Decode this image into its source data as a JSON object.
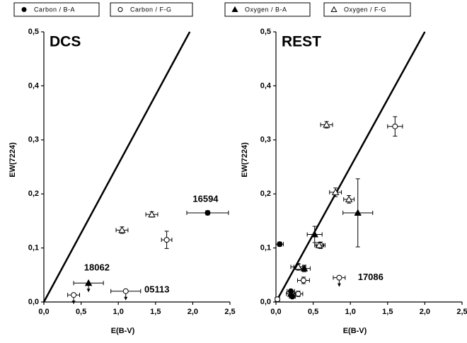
{
  "legend": [
    {
      "name": "Carbon / B-A",
      "marker": "filled-circle"
    },
    {
      "name": "Carbon / F-G",
      "marker": "open-circle"
    },
    {
      "name": "Oxygen / B-A",
      "marker": "filled-triangle"
    },
    {
      "name": "Oxygen / F-G",
      "marker": "open-triangle"
    }
  ],
  "chart_data": [
    {
      "type": "scatter",
      "title": "DCS",
      "xlabel": "E(B-V)",
      "ylabel": "EW(7224)",
      "xlim": [
        0,
        2.5
      ],
      "ylim": [
        0,
        0.5
      ],
      "xticks": [
        {
          "value": 0,
          "label": "0,0"
        },
        {
          "value": 0.5,
          "label": "0,5"
        },
        {
          "value": 1,
          "label": "1,0"
        },
        {
          "value": 1.5,
          "label": "1,5"
        },
        {
          "value": 2,
          "label": "2,0"
        },
        {
          "value": 2.5,
          "label": "2,5"
        }
      ],
      "yticks": [
        {
          "value": 0,
          "label": "0,0"
        },
        {
          "value": 0.1,
          "label": "0,1"
        },
        {
          "value": 0.2,
          "label": "0,2"
        },
        {
          "value": 0.3,
          "label": "0,3"
        },
        {
          "value": 0.4,
          "label": "0,4"
        },
        {
          "value": 0.5,
          "label": "0,5"
        }
      ],
      "line": {
        "x": [
          0,
          1.96
        ],
        "y": [
          0,
          0.5
        ]
      },
      "series": [
        {
          "marker": "filled-circle",
          "x": [
            2.2
          ],
          "y": [
            0.165
          ],
          "xerr": [
            0.28
          ],
          "yerr": [
            0.004
          ],
          "upper_limit": [
            false
          ]
        },
        {
          "marker": "open-circle",
          "x": [
            1.65,
            0.4,
            1.1
          ],
          "y": [
            0.115,
            0.013,
            0.02
          ],
          "xerr": [
            0.07,
            0.08,
            0.2
          ],
          "yerr": [
            0.016,
            0,
            0
          ],
          "upper_limit": [
            false,
            true,
            true
          ]
        },
        {
          "marker": "filled-triangle",
          "x": [
            0.6
          ],
          "y": [
            0.035
          ],
          "xerr": [
            0.2
          ],
          "yerr": [
            0
          ],
          "upper_limit": [
            true
          ]
        },
        {
          "marker": "open-triangle",
          "x": [
            1.05,
            1.45
          ],
          "y": [
            0.133,
            0.162
          ],
          "xerr": [
            0.08,
            0.08
          ],
          "yerr": [
            0.006,
            0.005
          ],
          "upper_limit": [
            false,
            false
          ]
        }
      ],
      "annotations": [
        {
          "text": "16594",
          "x": 2.0,
          "y": 0.19
        },
        {
          "text": "18062",
          "x": 0.54,
          "y": 0.063
        },
        {
          "text": "05113",
          "x": 1.35,
          "y": 0.022
        }
      ]
    },
    {
      "type": "scatter",
      "title": "REST",
      "xlabel": "E(B-V)",
      "ylabel": "EW(7224)",
      "xlim": [
        0,
        2.5
      ],
      "ylim": [
        0,
        0.5
      ],
      "xticks": [
        {
          "value": 0,
          "label": "0,0"
        },
        {
          "value": 0.5,
          "label": "0,5"
        },
        {
          "value": 1,
          "label": "1,0"
        },
        {
          "value": 1.5,
          "label": "1,5"
        },
        {
          "value": 2,
          "label": "2,0"
        },
        {
          "value": 2.5,
          "label": "2,5"
        }
      ],
      "yticks": [
        {
          "value": 0,
          "label": "0,0"
        },
        {
          "value": 0.1,
          "label": "0,1"
        },
        {
          "value": 0.2,
          "label": "0,2"
        },
        {
          "value": 0.3,
          "label": "0,3"
        },
        {
          "value": 0.4,
          "label": "0,4"
        },
        {
          "value": 0.5,
          "label": "0,5"
        }
      ],
      "line": {
        "x": [
          0,
          2.0
        ],
        "y": [
          0,
          0.5
        ]
      },
      "series": [
        {
          "marker": "filled-circle",
          "x": [
            0.05,
            0.2,
            0.22
          ],
          "y": [
            0.107,
            0.02,
            0.01
          ],
          "xerr": [
            0.05,
            0.05,
            0.04
          ],
          "yerr": [
            0.004,
            0,
            0
          ],
          "upper_limit": [
            false,
            false,
            false
          ]
        },
        {
          "marker": "open-circle",
          "x": [
            1.6,
            0.6,
            0.37,
            0.85,
            0.3,
            0.02
          ],
          "y": [
            0.325,
            0.105,
            0.04,
            0.045,
            0.015,
            0.005
          ],
          "xerr": [
            0.1,
            0.06,
            0.08,
            0.08,
            0.06,
            0.03
          ],
          "yerr": [
            0.018,
            0.006,
            0.006,
            0,
            0.005,
            0
          ],
          "upper_limit": [
            false,
            false,
            false,
            true,
            false,
            false
          ]
        },
        {
          "marker": "filled-triangle",
          "x": [
            1.1,
            0.52,
            0.3,
            0.38,
            0.2
          ],
          "y": [
            0.165,
            0.125,
            0.065,
            0.062,
            0.015
          ],
          "xerr": [
            0.2,
            0.1,
            0.1,
            0.08,
            0.06
          ],
          "yerr": [
            0.063,
            0.015,
            0.006,
            0.006,
            0.005
          ],
          "upper_limit": [
            false,
            false,
            false,
            false,
            false
          ]
        },
        {
          "marker": "open-triangle",
          "x": [
            0.68,
            0.8,
            0.98,
            0.58,
            0.3
          ],
          "y": [
            0.328,
            0.203,
            0.19,
            0.105,
            0.065
          ],
          "xerr": [
            0.08,
            0.08,
            0.07,
            0.06,
            0.06
          ],
          "yerr": [
            0.006,
            0.008,
            0.007,
            0.005,
            0.005
          ],
          "upper_limit": [
            false,
            false,
            false,
            false,
            false
          ]
        }
      ],
      "annotations": [
        {
          "text": "17086",
          "x": 1.1,
          "y": 0.045
        }
      ]
    }
  ]
}
